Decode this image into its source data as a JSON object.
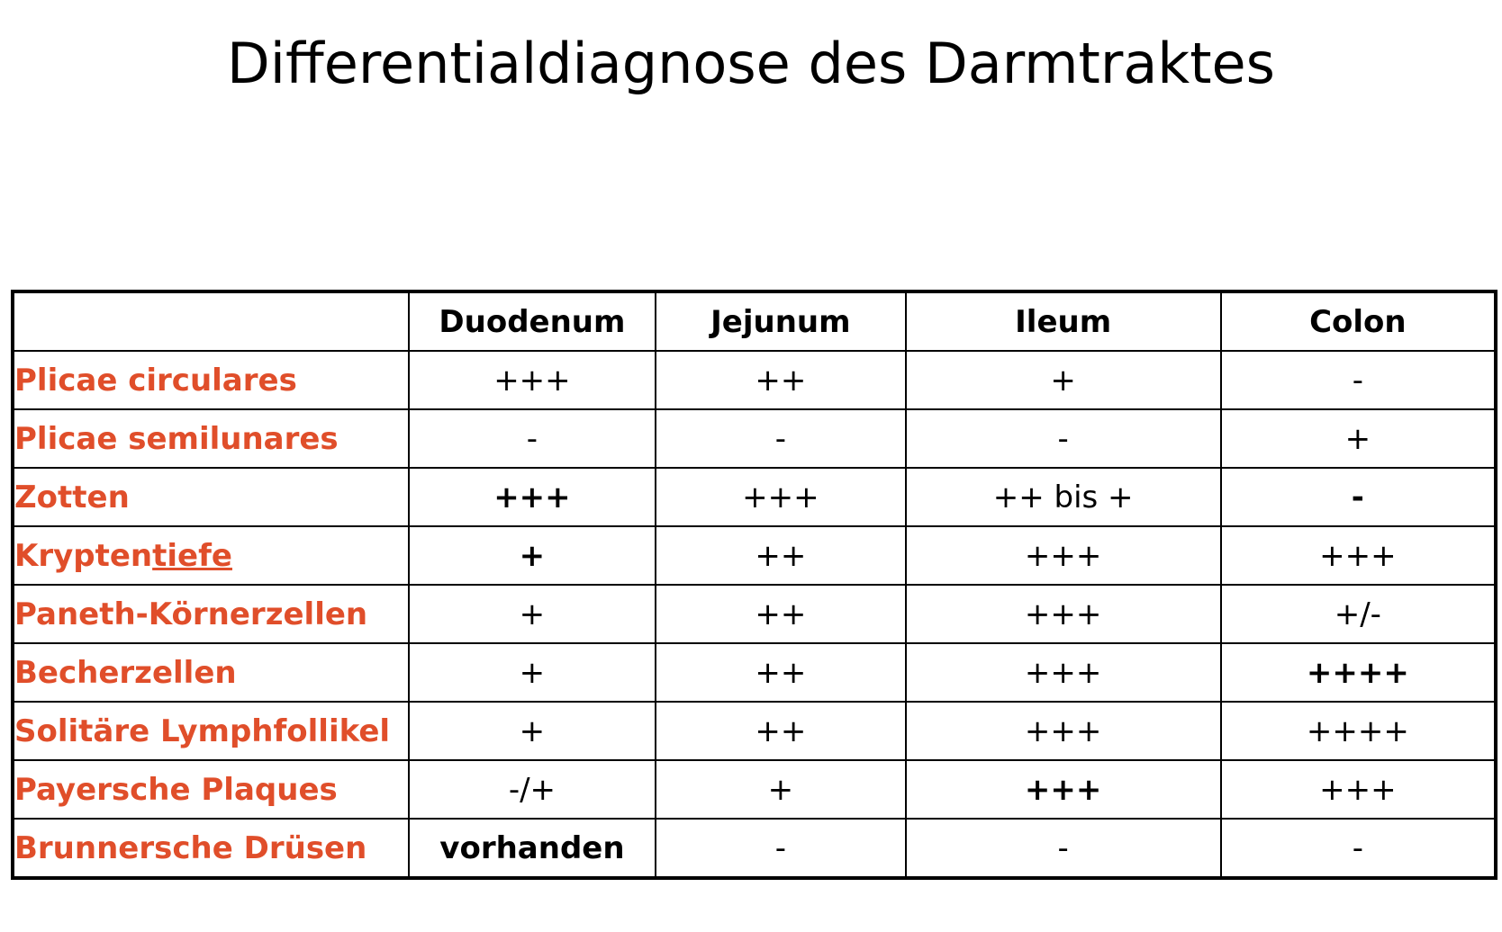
{
  "title": "Differentialdiagnose des Darmtraktes",
  "colors": {
    "label_color": "#e04e2a",
    "text_color": "#000000",
    "border_color": "#000000"
  },
  "table": {
    "corner": "",
    "columns": [
      "Duodenum",
      "Jejunum",
      "Ileum",
      "Colon"
    ],
    "rows": [
      {
        "label": "Plicae circulares",
        "values": [
          "+++",
          "++",
          "+",
          "-"
        ],
        "bold": [
          false,
          false,
          false,
          false
        ]
      },
      {
        "label": "Plicae semilunares",
        "values": [
          "-",
          "-",
          "-",
          "+"
        ],
        "bold": [
          false,
          false,
          false,
          false
        ]
      },
      {
        "label": "Zotten",
        "values": [
          "+++",
          "+++",
          "++ bis +",
          "-"
        ],
        "bold": [
          true,
          false,
          false,
          true
        ]
      },
      {
        "label": "Kryptentiefe",
        "label_plain": "Krypten",
        "label_underlined": "tiefe",
        "values": [
          "+",
          "++",
          "+++",
          "+++"
        ],
        "bold": [
          true,
          false,
          false,
          false
        ]
      },
      {
        "label": "Paneth-Körnerzellen",
        "values": [
          "+",
          "++",
          "+++",
          "+/-"
        ],
        "bold": [
          false,
          false,
          false,
          false
        ]
      },
      {
        "label": "Becherzellen",
        "values": [
          "+",
          "++",
          "+++",
          "++++"
        ],
        "bold": [
          false,
          false,
          false,
          true
        ]
      },
      {
        "label": "Solitäre Lymphfollikel",
        "values": [
          "+",
          "++",
          "+++",
          "++++"
        ],
        "bold": [
          false,
          false,
          false,
          false
        ]
      },
      {
        "label": "Payersche Plaques",
        "values": [
          "-/+",
          "+",
          "+++",
          "+++"
        ],
        "bold": [
          false,
          false,
          true,
          false
        ]
      },
      {
        "label": "Brunnersche Drüsen",
        "values": [
          "vorhanden",
          "-",
          "-",
          "-"
        ],
        "bold": [
          true,
          false,
          false,
          false
        ]
      }
    ]
  }
}
